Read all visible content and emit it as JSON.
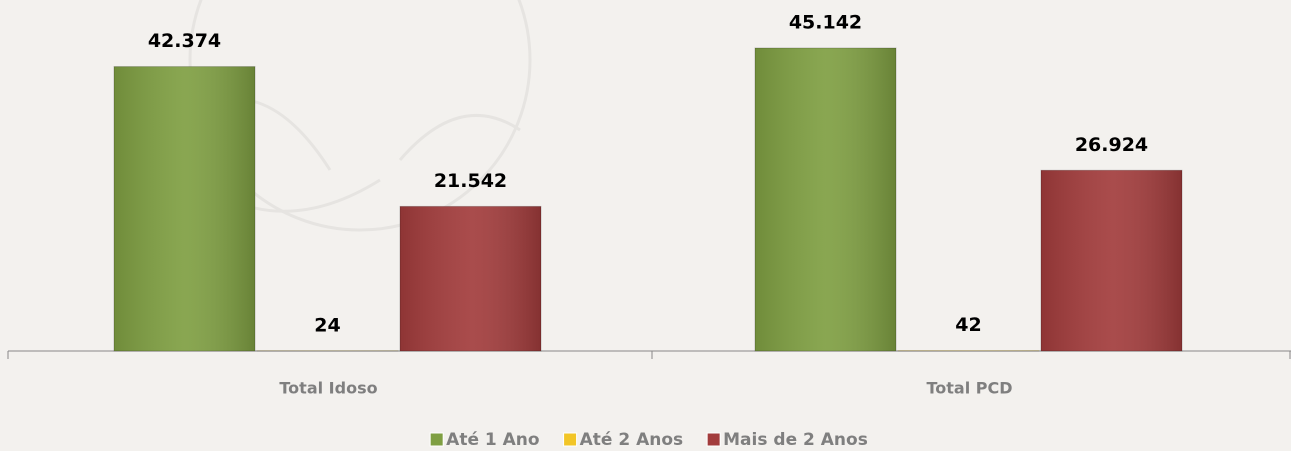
{
  "chart_data": {
    "type": "bar",
    "categories": [
      "Total Idoso",
      "Total PCD"
    ],
    "series": [
      {
        "name": "Até 1 Ano",
        "color": "#7f9f42",
        "values": [
          42374,
          45142
        ],
        "value_labels": [
          "42.374",
          "45.142"
        ]
      },
      {
        "name": "Até 2 Anos",
        "color": "#f2c526",
        "values": [
          24,
          42
        ],
        "value_labels": [
          "24",
          "42"
        ]
      },
      {
        "name": "Mais de 2 Anos",
        "color": "#a23c3c",
        "values": [
          21542,
          26924
        ],
        "value_labels": [
          "21.542",
          "26.924"
        ]
      }
    ],
    "legend": "bottom"
  }
}
